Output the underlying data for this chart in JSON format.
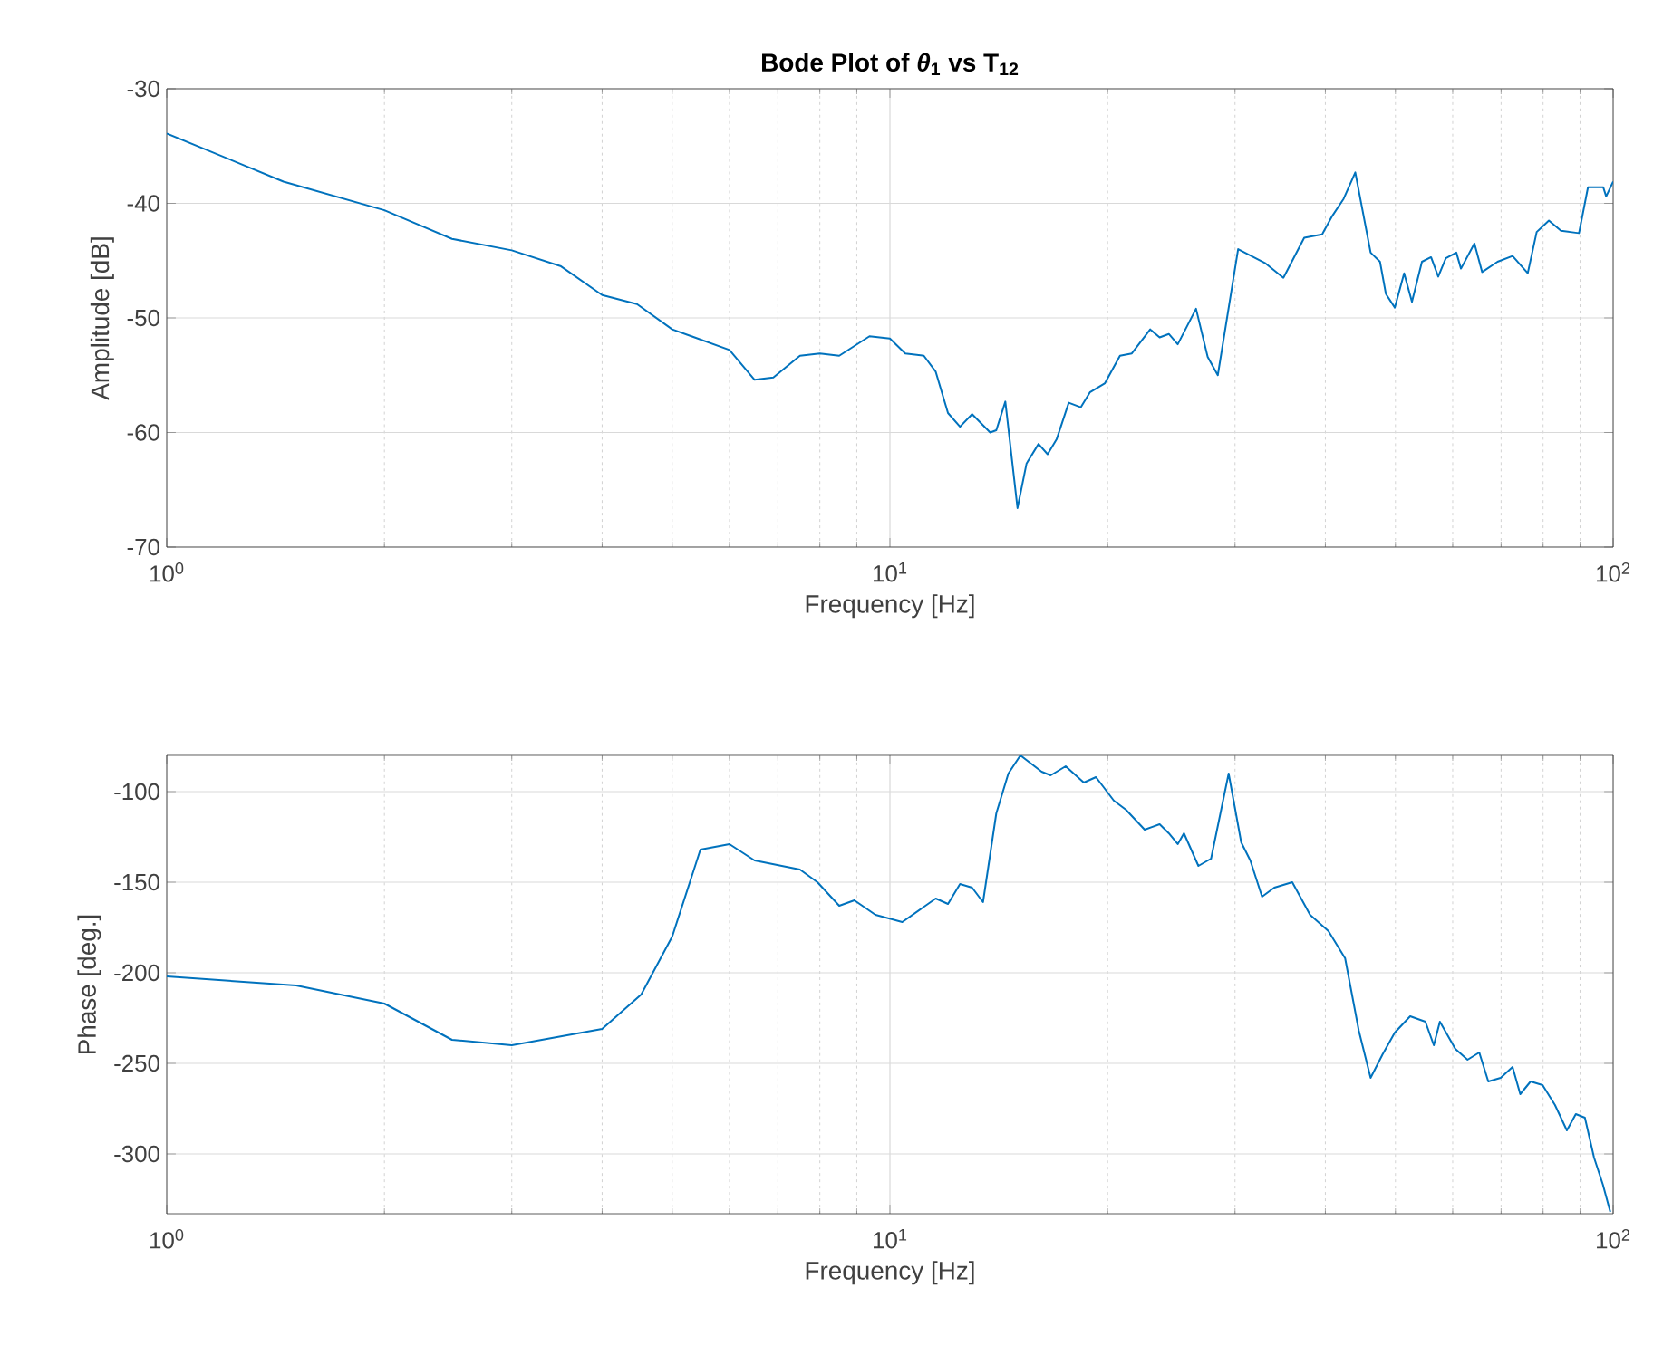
{
  "chart_data": [
    {
      "type": "line",
      "title": "Bode Plot of *θ*$_{1}$ vs T$_{12}$",
      "xlabel": "Frequency [Hz]",
      "ylabel": "Amplitude [dB]",
      "log": "x",
      "grid": true,
      "color": "#0072bd",
      "xlim": [
        1,
        100
      ],
      "ylim": [
        -70,
        -30
      ],
      "xticks": [
        {
          "value": 1,
          "label": "10$^{0}$"
        },
        {
          "value": 10,
          "label": "10$^{1}$"
        },
        {
          "value": 100,
          "label": "10$^{2}$"
        }
      ],
      "yticks": [
        -70,
        -60,
        -50,
        -40,
        -30
      ],
      "x": [
        1,
        1.45,
        2,
        2.48,
        3,
        3.51,
        4,
        4.47,
        5,
        6,
        6.5,
        6.9,
        7.51,
        8,
        8.51,
        9.37,
        10,
        10.5,
        11.14,
        11.57,
        12.03,
        12.5,
        12.99,
        13.76,
        14.03,
        14.44,
        15.01,
        15.45,
        16.05,
        16.52,
        17.0,
        17.67,
        18.36,
        18.9,
        19.83,
        20.8,
        21.6,
        22.9,
        23.6,
        24.3,
        25.0,
        26.5,
        27.5,
        28.4,
        30.3,
        33.0,
        35.0,
        37.4,
        39.6,
        40.8,
        42.4,
        44.0,
        46.2,
        47.6,
        48.5,
        49.9,
        51.4,
        52.7,
        54.4,
        56.0,
        57.3,
        58.7,
        60.7,
        61.6,
        64.3,
        65.9,
        69.2,
        72.6,
        76.2,
        78.4,
        81.5,
        84.7,
        89.7,
        92.3,
        96.9,
        97.8,
        100
      ],
      "values": [
        -33.9,
        -38.1,
        -40.6,
        -43.1,
        -44.1,
        -45.5,
        -48.0,
        -48.8,
        -51.0,
        -52.8,
        -55.4,
        -55.2,
        -53.3,
        -53.1,
        -53.3,
        -51.6,
        -51.8,
        -53.1,
        -53.3,
        -54.7,
        -58.3,
        -59.5,
        -58.4,
        -60.0,
        -59.8,
        -57.3,
        -66.6,
        -62.7,
        -61.0,
        -61.9,
        -60.6,
        -57.4,
        -57.8,
        -56.5,
        -55.7,
        -53.3,
        -53.1,
        -51.0,
        -51.7,
        -51.4,
        -52.3,
        -49.2,
        -53.4,
        -55.0,
        -44.0,
        -45.2,
        -46.5,
        -43.0,
        -42.7,
        -41.2,
        -39.6,
        -37.3,
        -44.3,
        -45.1,
        -47.9,
        -49.1,
        -46.1,
        -48.6,
        -45.1,
        -44.7,
        -46.4,
        -44.8,
        -44.3,
        -45.7,
        -43.5,
        -46.0,
        -45.1,
        -44.6,
        -46.1,
        -42.5,
        -41.5,
        -42.4,
        -42.6,
        -38.6,
        -38.6,
        -39.4,
        -38.1
      ]
    },
    {
      "type": "line",
      "xlabel": "Frequency [Hz]",
      "ylabel": "Phase [deg.]",
      "log": "x",
      "grid": true,
      "color": "#0072bd",
      "xlim": [
        1,
        100
      ],
      "ylim": [
        -333,
        -80
      ],
      "xticks": [
        {
          "value": 1,
          "label": "10$^{0}$"
        },
        {
          "value": 10,
          "label": "10$^{1}$"
        },
        {
          "value": 100,
          "label": "10$^{2}$"
        }
      ],
      "yticks": [
        -300,
        -250,
        -200,
        -150,
        -100
      ],
      "x": [
        1,
        1.51,
        2,
        2.48,
        3,
        4,
        4.53,
        5,
        5.47,
        6,
        6.5,
        7.51,
        7.94,
        8.51,
        8.93,
        9.55,
        10.4,
        11.57,
        12.03,
        12.5,
        12.99,
        13.45,
        14.03,
        14.58,
        15.15,
        16.21,
        16.68,
        17.5,
        18.54,
        19.27,
        20.4,
        21.2,
        22.5,
        23.6,
        24.3,
        25.0,
        25.5,
        26.7,
        27.8,
        29.4,
        30.6,
        31.5,
        32.7,
        34.0,
        36.0,
        38.1,
        40.4,
        42.6,
        44.5,
        46.2,
        48.0,
        49.9,
        52.4,
        55.0,
        56.5,
        57.6,
        60.5,
        62.9,
        65.3,
        67.2,
        69.9,
        72.6,
        74.4,
        76.9,
        79.9,
        83.1,
        86.3,
        88.8,
        91.4,
        94.1,
        96.8,
        99.1
      ],
      "values": [
        -202,
        -207,
        -217,
        -237,
        -240,
        -231,
        -212,
        -180,
        -132,
        -129,
        -138,
        -143,
        -150,
        -163,
        -160,
        -168,
        -172,
        -159,
        -162,
        -151,
        -153,
        -161,
        -112,
        -90,
        -80,
        -89,
        -91,
        -86,
        -95,
        -92,
        -105,
        -110,
        -121,
        -118,
        -123,
        -129,
        -123,
        -141,
        -137,
        -90,
        -128,
        -138,
        -158,
        -153,
        -150,
        -168,
        -177,
        -192,
        -232,
        -258,
        -245,
        -233,
        -224,
        -227,
        -240,
        -227,
        -242,
        -248,
        -244,
        -260,
        -258,
        -252,
        -267,
        -260,
        -262,
        -273,
        -287,
        -278,
        -280,
        -302,
        -317,
        -332
      ]
    }
  ]
}
